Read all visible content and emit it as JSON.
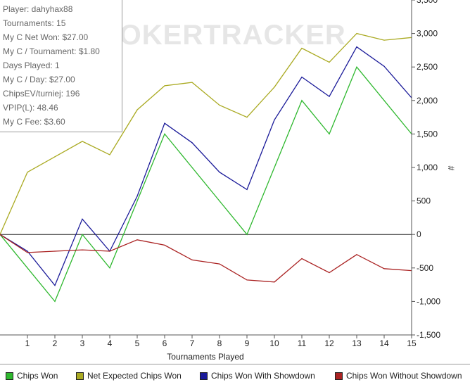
{
  "stats": [
    "Player: dahyhax88",
    "Tournaments: 15",
    "My C Net Won: $27.00",
    "My C / Tournament: $1.80",
    "Days Played: 1",
    "My C / Day: $27.00",
    "ChipsEV/turniej: 196",
    "VPIP(L): 48.46",
    "My C Fee: $3.60"
  ],
  "watermark": "POKERTRACKER",
  "chart_data": {
    "type": "line",
    "title": "",
    "xlabel": "Tournaments Played",
    "ylabel": "#",
    "x": [
      0,
      1,
      2,
      3,
      4,
      5,
      6,
      7,
      8,
      9,
      10,
      11,
      12,
      13,
      14,
      15
    ],
    "xticks": [
      1,
      2,
      3,
      4,
      5,
      6,
      7,
      8,
      9,
      10,
      11,
      12,
      13,
      14,
      15
    ],
    "xlim": [
      0,
      15
    ],
    "ylim": [
      -1500,
      3500
    ],
    "yticks": [
      -1500,
      -1000,
      -500,
      0,
      500,
      1000,
      1500,
      2000,
      2500,
      3000,
      3500
    ],
    "ytick_labels": [
      "-1,500",
      "-1,000",
      "-500",
      "0",
      "500",
      "1,000",
      "1,500",
      "2,000",
      "2,500",
      "3,000",
      "3,500"
    ],
    "grid": false,
    "legend_position": "bottom",
    "series": [
      {
        "name": "Chips Won",
        "color": "#2eb82e",
        "values": [
          0,
          -500,
          -1000,
          0,
          -500,
          500,
          1500,
          1000,
          500,
          0,
          1000,
          2000,
          1500,
          2500,
          2000,
          1500
        ]
      },
      {
        "name": "Net Expected Chips Won",
        "color": "#aaaa22",
        "values": [
          0,
          930,
          1160,
          1390,
          1190,
          1860,
          2220,
          2270,
          1930,
          1750,
          2200,
          2780,
          2570,
          3000,
          2900,
          2940
        ]
      },
      {
        "name": "Chips Won With Showdown",
        "color": "#1a1a99",
        "values": [
          0,
          -250,
          -760,
          230,
          -250,
          570,
          1660,
          1370,
          930,
          670,
          1710,
          2350,
          2060,
          2800,
          2510,
          2040
        ]
      },
      {
        "name": "Chips Won Without Showdown",
        "color": "#aa2222",
        "values": [
          0,
          -270,
          -250,
          -230,
          -250,
          -80,
          -160,
          -380,
          -440,
          -680,
          -710,
          -360,
          -570,
          -300,
          -510,
          -540
        ]
      }
    ]
  }
}
